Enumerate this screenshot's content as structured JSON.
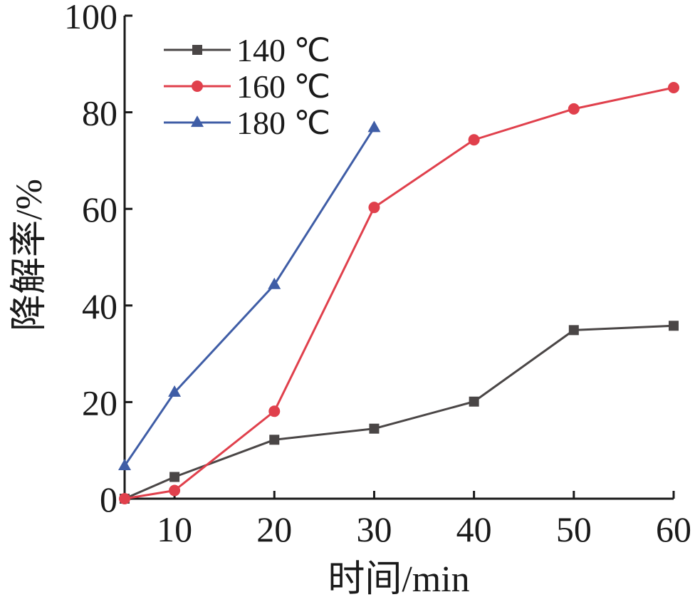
{
  "chart_data": {
    "type": "line",
    "xlabel": "时间/min",
    "ylabel": "降解率/%",
    "x_ticks": [
      10,
      20,
      30,
      40,
      50,
      60
    ],
    "y_ticks": [
      0,
      20,
      40,
      60,
      80,
      100
    ],
    "xlim": [
      5,
      60
    ],
    "ylim": [
      0,
      100
    ],
    "grid": false,
    "legend_position": "top-left",
    "series": [
      {
        "name": "140 ℃",
        "color": "#4a4646",
        "marker": "square",
        "x": [
          5,
          10,
          20,
          30,
          40,
          50,
          60
        ],
        "y": [
          0,
          4.5,
          12.2,
          14.5,
          20.1,
          34.9,
          35.8
        ]
      },
      {
        "name": "160 ℃",
        "color": "#e0404c",
        "marker": "circle",
        "x": [
          5,
          10,
          20,
          30,
          40,
          50,
          60
        ],
        "y": [
          0,
          1.7,
          18.1,
          60.3,
          74.3,
          80.7,
          85.1
        ]
      },
      {
        "name": "180 ℃",
        "color": "#3f5da6",
        "marker": "triangle",
        "x": [
          5,
          10,
          20,
          30
        ],
        "y": [
          6.8,
          22.0,
          44.3,
          76.8
        ]
      }
    ]
  }
}
